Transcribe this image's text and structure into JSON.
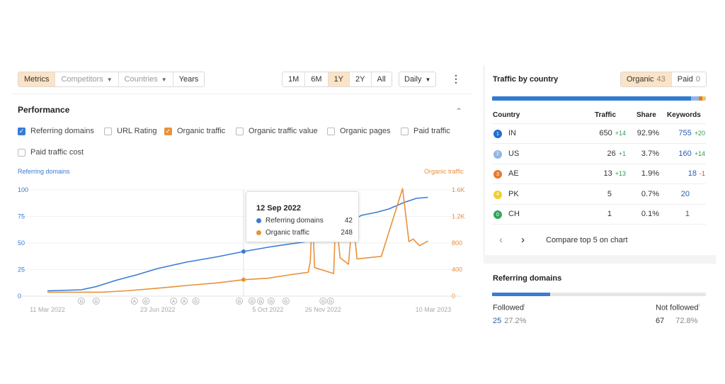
{
  "toolbar": {
    "tabs": [
      "Metrics",
      "Competitors",
      "Countries",
      "Years"
    ],
    "ranges": [
      "1M",
      "6M",
      "1Y",
      "2Y",
      "All"
    ],
    "interval": "Daily",
    "more": "⋮"
  },
  "performance": {
    "title": "Performance",
    "collapse": "⌃",
    "checkboxes": [
      {
        "label": "Referring domains",
        "checked": true,
        "color": "#3a7bd5"
      },
      {
        "label": "URL Rating",
        "checked": false
      },
      {
        "label": "Organic traffic",
        "checked": true,
        "color": "#e8913b"
      },
      {
        "label": "Organic traffic value",
        "checked": false
      },
      {
        "label": "Organic pages",
        "checked": false
      },
      {
        "label": "Paid traffic",
        "checked": false
      },
      {
        "label": "Paid traffic cost",
        "checked": false
      }
    ]
  },
  "chart_data": {
    "type": "line",
    "left_axis_label": "Referring domains",
    "right_axis_label": "Organic traffic",
    "left_ticks": [
      "100",
      "75",
      "50",
      "25",
      "0"
    ],
    "right_ticks": [
      "1.6K",
      "1.2K",
      "800",
      "400",
      "0"
    ],
    "x_ticks": [
      "11 Mar 2022",
      "23 Jun 2022",
      "5 Oct 2022",
      "26 Nov 2022",
      "10 Mar 2023"
    ],
    "ylim_left": [
      0,
      100
    ],
    "ylim_right": [
      0,
      1600
    ],
    "x_range": [
      "2022-03-11",
      "2023-03-10"
    ],
    "series": [
      {
        "name": "Referring domains",
        "color": "#3a7bd5",
        "axis": "left",
        "points": [
          [
            "2022-03-11",
            5
          ],
          [
            "2022-04-12",
            6
          ],
          [
            "2022-04-26",
            9
          ],
          [
            "2022-05-15",
            15
          ],
          [
            "2022-06-03",
            20
          ],
          [
            "2022-06-23",
            26
          ],
          [
            "2022-07-20",
            32
          ],
          [
            "2022-08-18",
            37
          ],
          [
            "2022-09-12",
            42
          ],
          [
            "2022-10-05",
            46
          ],
          [
            "2022-10-25",
            49
          ],
          [
            "2022-11-16",
            52
          ],
          [
            "2022-11-26",
            59
          ],
          [
            "2022-12-12",
            63
          ],
          [
            "2023-01-01",
            76
          ],
          [
            "2023-01-16",
            79
          ],
          [
            "2023-01-27",
            82
          ],
          [
            "2023-02-10",
            88
          ],
          [
            "2023-02-22",
            92
          ],
          [
            "2023-03-05",
            93
          ]
        ]
      },
      {
        "name": "Organic traffic",
        "color": "#e8913b",
        "axis": "right",
        "points": [
          [
            "2022-03-11",
            60
          ],
          [
            "2022-05-01",
            60
          ],
          [
            "2022-05-24",
            80
          ],
          [
            "2022-06-23",
            120
          ],
          [
            "2022-07-20",
            160
          ],
          [
            "2022-08-18",
            200
          ],
          [
            "2022-09-12",
            248
          ],
          [
            "2022-10-05",
            270
          ],
          [
            "2022-10-25",
            320
          ],
          [
            "2022-11-12",
            360
          ],
          [
            "2022-11-14",
            530
          ],
          [
            "2022-11-16",
            1280
          ],
          [
            "2022-11-18",
            430
          ],
          [
            "2022-12-06",
            340
          ],
          [
            "2022-12-08",
            1270
          ],
          [
            "2022-12-12",
            580
          ],
          [
            "2022-12-20",
            480
          ],
          [
            "2022-12-24",
            1230
          ],
          [
            "2022-12-28",
            560
          ],
          [
            "2023-01-20",
            600
          ],
          [
            "2023-02-09",
            1620
          ],
          [
            "2023-02-15",
            820
          ],
          [
            "2023-02-19",
            860
          ],
          [
            "2023-02-25",
            760
          ],
          [
            "2023-03-05",
            830
          ]
        ]
      }
    ],
    "markers": [
      "G",
      "A",
      "G",
      "A",
      "A",
      "G",
      "G",
      "G",
      "G",
      "G",
      "G",
      "G",
      "G"
    ]
  },
  "tooltip": {
    "date": "12 Sep 2022",
    "rows": [
      {
        "label": "Referring domains",
        "value": "42",
        "color": "#3a7bd5"
      },
      {
        "label": "Organic traffic",
        "value": "248",
        "color": "#e8913b"
      }
    ]
  },
  "traffic_by_country": {
    "title": "Traffic by country",
    "organic_label": "Organic",
    "organic_count": "43",
    "paid_label": "Paid",
    "paid_count": "0",
    "headers": [
      "Country",
      "Traffic",
      "Share",
      "Keywords"
    ],
    "rows": [
      {
        "icon": "1",
        "code": "IN",
        "traffic": "650",
        "traffic_delta": "+14",
        "share": "92.9%",
        "keywords": "755",
        "kw_delta": "+20",
        "kw_delta_color": "#2e9e4f",
        "flag_color": "#1f6fd1"
      },
      {
        "icon": "2",
        "code": "US",
        "traffic": "26",
        "traffic_delta": "+1",
        "share": "3.7%",
        "keywords": "160",
        "kw_delta": "+14",
        "kw_delta_color": "#2e9e4f",
        "flag_color": "#8fb6e8"
      },
      {
        "icon": "3",
        "code": "AE",
        "traffic": "13",
        "traffic_delta": "+13",
        "share": "1.9%",
        "keywords": "18",
        "kw_delta": "-1",
        "kw_delta_color": "#d94040",
        "flag_color": "#e8782e"
      },
      {
        "icon": "4",
        "code": "PK",
        "traffic": "5",
        "traffic_delta": "",
        "share": "0.7%",
        "keywords": "20",
        "kw_delta": "",
        "kw_delta_color": "#2e9e4f",
        "flag_color": "#f0cf30"
      },
      {
        "icon": "0",
        "code": "CH",
        "traffic": "1",
        "traffic_delta": "",
        "share": "0.1%",
        "keywords": "1",
        "kw_delta": "",
        "kw_delta_color": "#2e9e4f",
        "flag_color": "#2fa860"
      }
    ],
    "prev": "‹",
    "next": "›",
    "compare": "Compare top 5 on chart"
  },
  "referring_domains": {
    "title": "Referring domains",
    "followed_label": "Followed",
    "followed_count": "25",
    "followed_pct": "27.2%",
    "not_followed_label": "Not followed",
    "not_followed_count": "67",
    "not_followed_pct": "72.8%",
    "followed_fraction": 0.272
  },
  "colors": {
    "blue": "#3a7bd5",
    "orange": "#e8913b",
    "accent_bg": "#fbe3c6",
    "green": "#2e9e4f",
    "red": "#d94040"
  }
}
